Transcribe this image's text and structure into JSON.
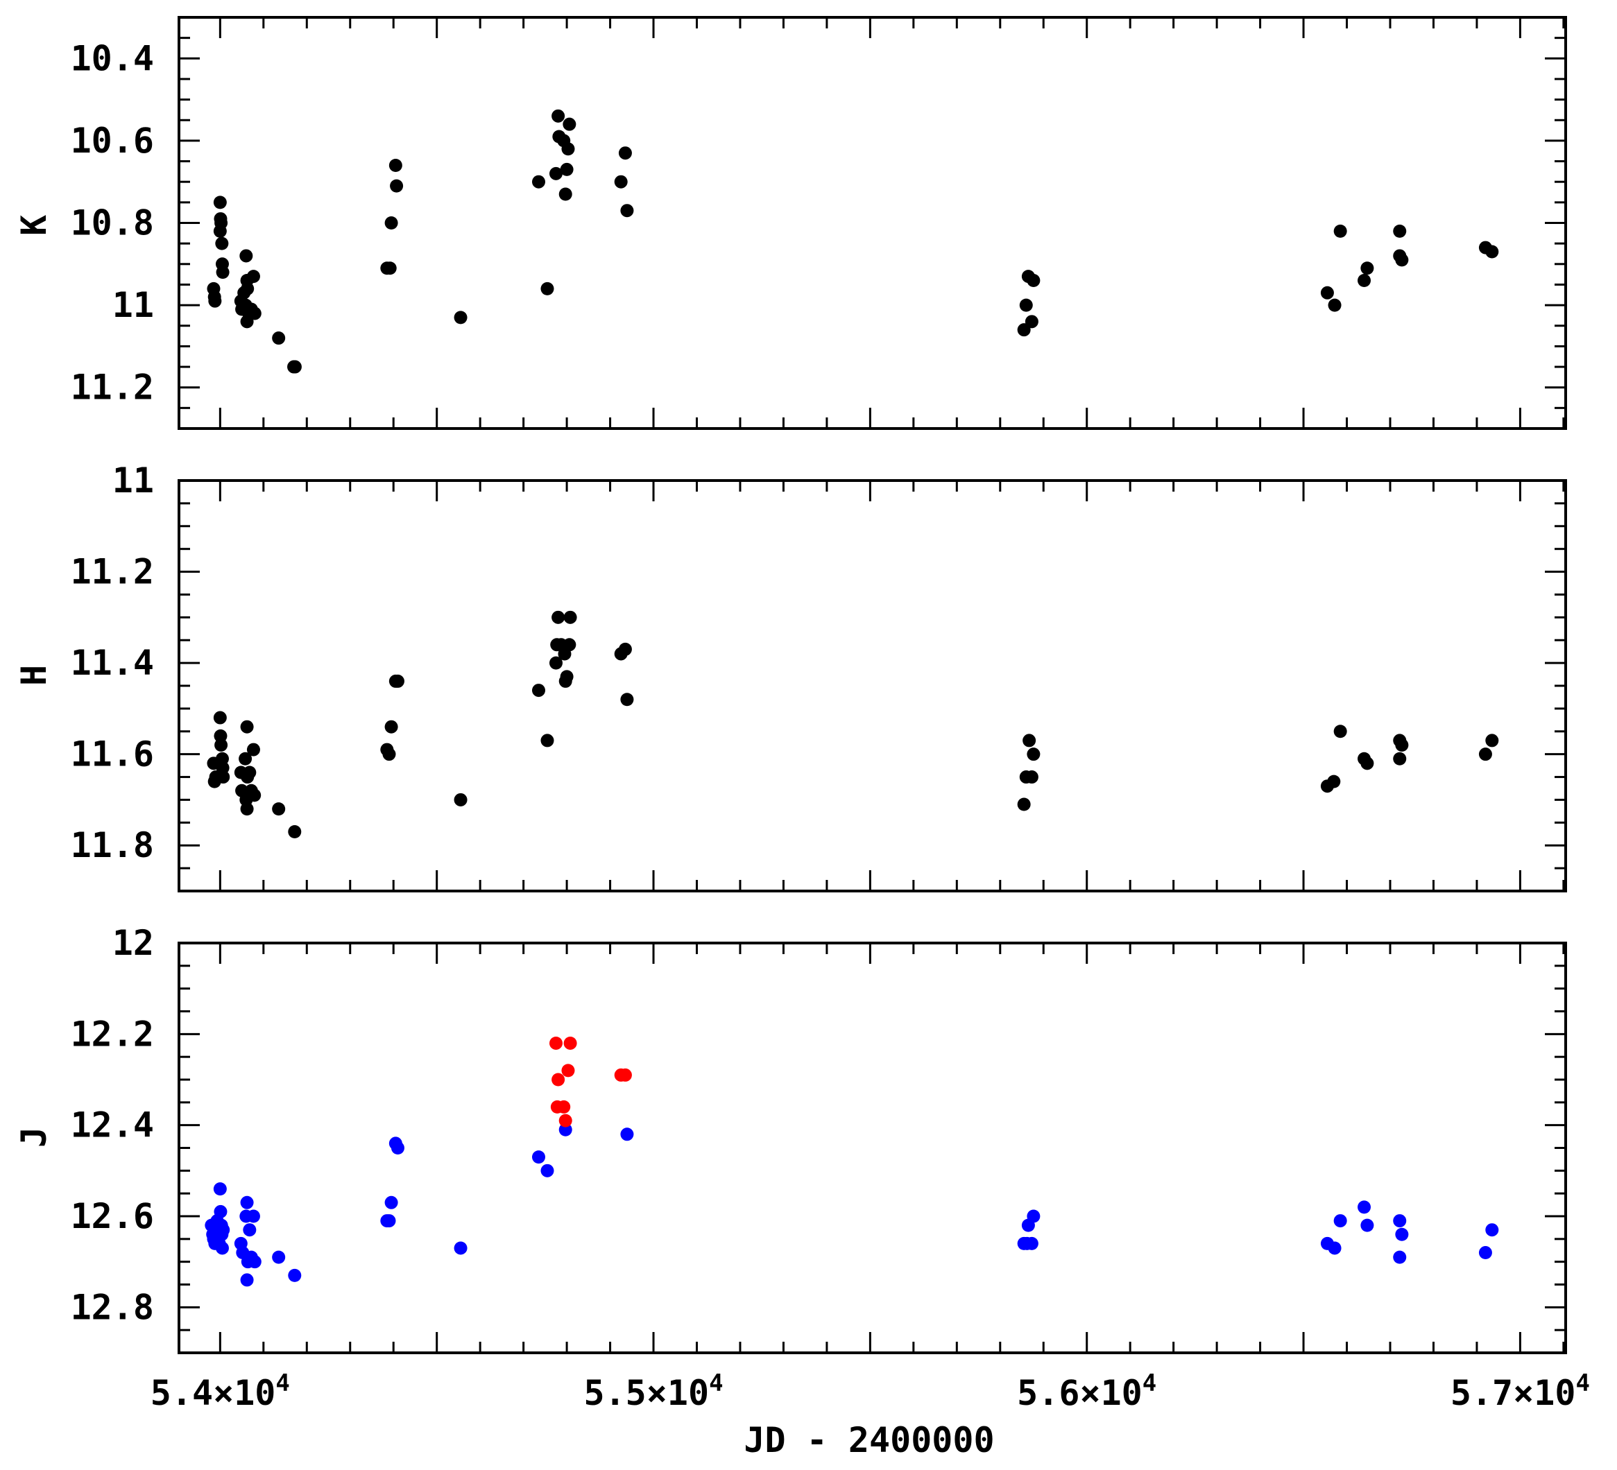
{
  "colors": {
    "frame": "#000000",
    "black_points": "#000000",
    "blue_points": "#0000ff",
    "red_points": "#ff0000",
    "background": "#ffffff"
  },
  "chart_data": [
    {
      "type": "scatter",
      "panel": "top",
      "ylabel": "K",
      "xlim": [
        53905,
        57105
      ],
      "ylim": [
        10.3,
        11.3
      ],
      "y_inverted": true,
      "yticks": [
        "10.4",
        "10.6",
        "10.8",
        "11",
        "11.2"
      ],
      "series": [
        {
          "color": "#000000",
          "points": [
            [
              53985,
              10.96
            ],
            [
              53987,
              10.98
            ],
            [
              53988,
              10.99
            ],
            [
              54000,
              10.75
            ],
            [
              54001,
              10.79
            ],
            [
              54002,
              10.8
            ],
            [
              54000,
              10.82
            ],
            [
              54004,
              10.85
            ],
            [
              54005,
              10.9
            ],
            [
              54006,
              10.92
            ],
            [
              54048,
              10.99
            ],
            [
              54050,
              11.01
            ],
            [
              54060,
              10.88
            ],
            [
              54062,
              10.94
            ],
            [
              54055,
              10.97
            ],
            [
              54063,
              10.96
            ],
            [
              54059,
              11.0
            ],
            [
              54062,
              11.04
            ],
            [
              54066,
              11.02
            ],
            [
              54072,
              11.01
            ],
            [
              54077,
              10.93
            ],
            [
              54080,
              11.02
            ],
            [
              54135,
              11.08
            ],
            [
              54170,
              11.15
            ],
            [
              54173,
              11.15
            ],
            [
              54385,
              10.91
            ],
            [
              54392,
              10.91
            ],
            [
              54395,
              10.8
            ],
            [
              54405,
              10.66
            ],
            [
              54407,
              10.71
            ],
            [
              54555,
              11.03
            ],
            [
              54735,
              10.7
            ],
            [
              54755,
              10.96
            ],
            [
              54775,
              10.68
            ],
            [
              54780,
              10.54
            ],
            [
              54782,
              10.59
            ],
            [
              54793,
              10.6
            ],
            [
              54797,
              10.73
            ],
            [
              54800,
              10.67
            ],
            [
              54803,
              10.62
            ],
            [
              54806,
              10.56
            ],
            [
              54925,
              10.7
            ],
            [
              54935,
              10.63
            ],
            [
              54939,
              10.77
            ],
            [
              55855,
              11.06
            ],
            [
              55860,
              11.0
            ],
            [
              55865,
              10.93
            ],
            [
              55873,
              11.04
            ],
            [
              55877,
              10.94
            ],
            [
              56555,
              10.97
            ],
            [
              56572,
              11.0
            ],
            [
              56585,
              10.82
            ],
            [
              56640,
              10.94
            ],
            [
              56647,
              10.91
            ],
            [
              56722,
              10.82
            ],
            [
              56722,
              10.88
            ],
            [
              56727,
              10.89
            ],
            [
              56920,
              10.86
            ],
            [
              56935,
              10.87
            ]
          ]
        }
      ]
    },
    {
      "type": "scatter",
      "panel": "middle",
      "ylabel": "H",
      "xlim": [
        53905,
        57105
      ],
      "ylim": [
        11.0,
        11.9
      ],
      "y_inverted": true,
      "yticks": [
        "11",
        "11.2",
        "11.4",
        "11.6",
        "11.8"
      ],
      "series": [
        {
          "color": "#000000",
          "points": [
            [
              53985,
              11.62
            ],
            [
              53987,
              11.66
            ],
            [
              53990,
              11.65
            ],
            [
              54000,
              11.52
            ],
            [
              54001,
              11.56
            ],
            [
              54002,
              11.58
            ],
            [
              53998,
              11.62
            ],
            [
              54005,
              11.61
            ],
            [
              54006,
              11.63
            ],
            [
              54007,
              11.65
            ],
            [
              54048,
              11.64
            ],
            [
              54050,
              11.68
            ],
            [
              54062,
              11.54
            ],
            [
              54058,
              11.61
            ],
            [
              54063,
              11.65
            ],
            [
              54060,
              11.7
            ],
            [
              54062,
              11.72
            ],
            [
              54068,
              11.64
            ],
            [
              54072,
              11.68
            ],
            [
              54077,
              11.59
            ],
            [
              54079,
              11.69
            ],
            [
              54135,
              11.72
            ],
            [
              54172,
              11.77
            ],
            [
              54385,
              11.59
            ],
            [
              54390,
              11.6
            ],
            [
              54395,
              11.54
            ],
            [
              54405,
              11.44
            ],
            [
              54410,
              11.44
            ],
            [
              54555,
              11.7
            ],
            [
              54735,
              11.46
            ],
            [
              54755,
              11.57
            ],
            [
              54775,
              11.4
            ],
            [
              54780,
              11.3
            ],
            [
              54777,
              11.36
            ],
            [
              54787,
              11.36
            ],
            [
              54795,
              11.38
            ],
            [
              54797,
              11.44
            ],
            [
              54800,
              11.43
            ],
            [
              54806,
              11.36
            ],
            [
              54808,
              11.3
            ],
            [
              54925,
              11.38
            ],
            [
              54935,
              11.37
            ],
            [
              54939,
              11.48
            ],
            [
              55855,
              11.71
            ],
            [
              55860,
              11.65
            ],
            [
              55867,
              11.57
            ],
            [
              55873,
              11.65
            ],
            [
              55877,
              11.6
            ],
            [
              56555,
              11.67
            ],
            [
              56570,
              11.66
            ],
            [
              56585,
              11.55
            ],
            [
              56640,
              11.61
            ],
            [
              56647,
              11.62
            ],
            [
              56722,
              11.57
            ],
            [
              56722,
              11.61
            ],
            [
              56727,
              11.58
            ],
            [
              56920,
              11.6
            ],
            [
              56935,
              11.57
            ]
          ]
        }
      ]
    },
    {
      "type": "scatter",
      "panel": "bottom",
      "ylabel": "J",
      "xlabel": "JD - 2400000",
      "xlim": [
        53905,
        57105
      ],
      "ylim": [
        12.0,
        12.9
      ],
      "y_inverted": true,
      "yticks": [
        "12",
        "12.2",
        "12.4",
        "12.6",
        "12.8"
      ],
      "xticks": [
        {
          "value": 54000,
          "mantissa": "5.4×10",
          "exponent": "4"
        },
        {
          "value": 55000,
          "mantissa": "5.5×10",
          "exponent": "4"
        },
        {
          "value": 56000,
          "mantissa": "5.6×10",
          "exponent": "4"
        },
        {
          "value": 57000,
          "mantissa": "5.7×10",
          "exponent": "4"
        }
      ],
      "series": [
        {
          "color": "#0000ff",
          "points": [
            [
              53980,
              12.62
            ],
            [
              53983,
              12.64
            ],
            [
              53985,
              12.65
            ],
            [
              53988,
              12.66
            ],
            [
              53990,
              12.63
            ],
            [
              53993,
              12.61
            ],
            [
              54000,
              12.54
            ],
            [
              54001,
              12.59
            ],
            [
              54003,
              12.62
            ],
            [
              54004,
              12.64
            ],
            [
              53998,
              12.66
            ],
            [
              54005,
              12.67
            ],
            [
              54007,
              12.63
            ],
            [
              54048,
              12.66
            ],
            [
              54052,
              12.68
            ],
            [
              54062,
              12.57
            ],
            [
              54060,
              12.6
            ],
            [
              54064,
              12.7
            ],
            [
              54062,
              12.74
            ],
            [
              54068,
              12.63
            ],
            [
              54072,
              12.69
            ],
            [
              54077,
              12.6
            ],
            [
              54080,
              12.7
            ],
            [
              54135,
              12.69
            ],
            [
              54172,
              12.73
            ],
            [
              54385,
              12.61
            ],
            [
              54390,
              12.61
            ],
            [
              54395,
              12.57
            ],
            [
              54405,
              12.44
            ],
            [
              54410,
              12.45
            ],
            [
              54555,
              12.67
            ],
            [
              54735,
              12.47
            ],
            [
              54755,
              12.5
            ],
            [
              54797,
              12.41
            ],
            [
              54939,
              12.42
            ],
            [
              55855,
              12.66
            ],
            [
              55862,
              12.66
            ],
            [
              55865,
              12.62
            ],
            [
              55873,
              12.66
            ],
            [
              55877,
              12.6
            ],
            [
              56555,
              12.66
            ],
            [
              56572,
              12.67
            ],
            [
              56585,
              12.61
            ],
            [
              56640,
              12.58
            ],
            [
              56647,
              12.62
            ],
            [
              56722,
              12.61
            ],
            [
              56722,
              12.69
            ],
            [
              56727,
              12.64
            ],
            [
              56920,
              12.68
            ],
            [
              56935,
              12.63
            ]
          ]
        },
        {
          "color": "#ff0000",
          "points": [
            [
              54775,
              12.22
            ],
            [
              54780,
              12.3
            ],
            [
              54778,
              12.36
            ],
            [
              54793,
              12.36
            ],
            [
              54797,
              12.39
            ],
            [
              54803,
              12.28
            ],
            [
              54808,
              12.22
            ],
            [
              54925,
              12.29
            ],
            [
              54935,
              12.29
            ]
          ]
        }
      ]
    }
  ]
}
